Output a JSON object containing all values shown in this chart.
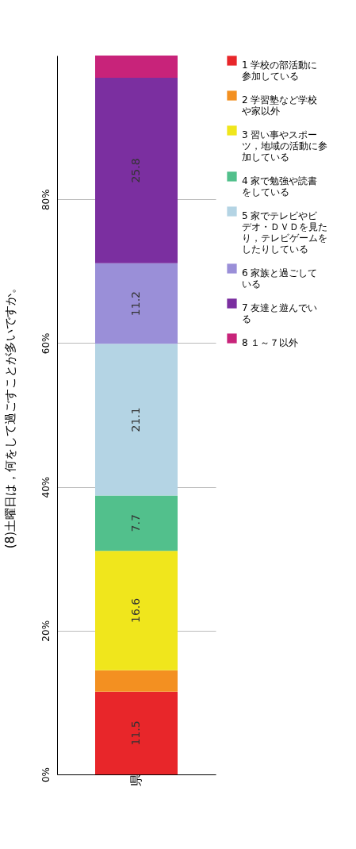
{
  "chart_data": {
    "type": "bar",
    "title": "(8)土曜日は，何をして過ごすことが多いですか。",
    "categories": [
      "県"
    ],
    "stacked": true,
    "ylim": [
      0,
      100
    ],
    "yticks": [
      {
        "value": 0,
        "label": "0%"
      },
      {
        "value": 20,
        "label": "20%"
      },
      {
        "value": 40,
        "label": "40%"
      },
      {
        "value": 60,
        "label": "60%"
      },
      {
        "value": 80,
        "label": "80%"
      }
    ],
    "grid": "y",
    "legend": "right",
    "series": [
      {
        "name": "1 学校の部活動に参加している",
        "color": "#e8262a",
        "values": [
          11.5
        ],
        "value_labels": [
          "11.5"
        ]
      },
      {
        "name": "2 学習塾など学校や家以外",
        "color": "#f39021",
        "values": [
          3.0
        ],
        "value_labels": [
          null
        ]
      },
      {
        "name": "3 習い事やスポーツ，地域の活動に参加している",
        "color": "#f0e61c",
        "values": [
          16.6
        ],
        "value_labels": [
          "16.6"
        ]
      },
      {
        "name": "4 家で勉強や読書をしている",
        "color": "#52c08c",
        "values": [
          7.7
        ],
        "value_labels": [
          "7.7"
        ]
      },
      {
        "name": "5 家でテレビやビデオ・ＤＶＤを見たり，テレビゲームをしたりしている",
        "color": "#b4d4e4",
        "values": [
          21.1
        ],
        "value_labels": [
          "21.1"
        ]
      },
      {
        "name": "6 家族と過ごしている",
        "color": "#9a8fd8",
        "values": [
          11.2
        ],
        "value_labels": [
          "11.2"
        ]
      },
      {
        "name": "7 友達と遊んでいる",
        "color": "#7b2fa0",
        "values": [
          25.8
        ],
        "value_labels": [
          "25.8"
        ]
      },
      {
        "name": "8 １～７以外",
        "color": "#c8237a",
        "values": [
          3.1
        ],
        "value_labels": [
          null
        ]
      }
    ]
  }
}
